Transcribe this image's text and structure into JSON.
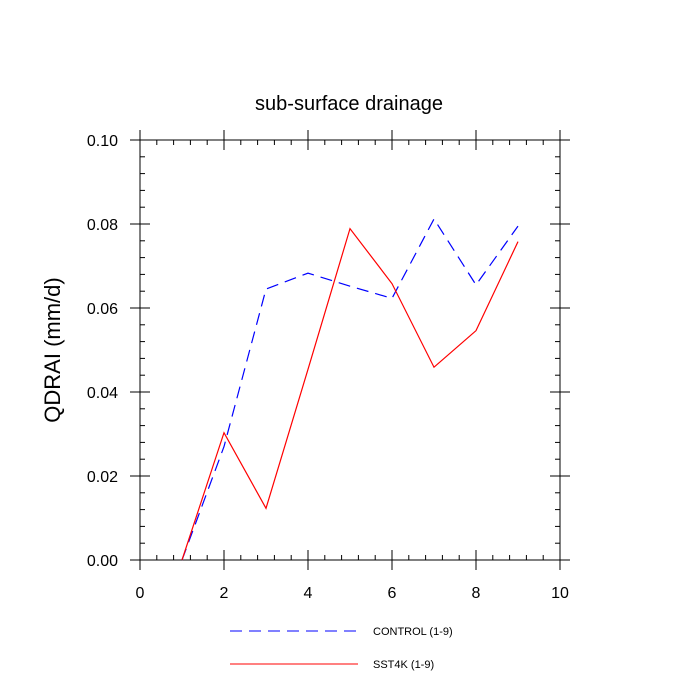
{
  "chart_data": {
    "type": "line",
    "title": "sub-surface drainage",
    "xlabel": "",
    "ylabel": "QDRAI  (mm/d)",
    "xlim": [
      0,
      10
    ],
    "ylim": [
      0,
      0.1
    ],
    "xticks": [
      0,
      2,
      4,
      6,
      8,
      10
    ],
    "xtick_labels": [
      "0",
      "2",
      "4",
      "6",
      "8",
      "10"
    ],
    "yticks": [
      0,
      0.02,
      0.04,
      0.06,
      0.08,
      0.1
    ],
    "ytick_labels": [
      "0.00",
      "0.02",
      "0.04",
      "0.06",
      "0.08",
      "0.10"
    ],
    "grid": false,
    "legend_position": "bottom",
    "x": [
      1,
      2,
      3,
      4,
      5,
      6,
      7,
      8,
      9
    ],
    "series": [
      {
        "name": "CONTROL (1-9)",
        "color": "#0000ff",
        "dash": "dashed",
        "values": [
          0.0,
          0.027,
          0.0645,
          0.0683,
          0.0652,
          0.0623,
          0.0812,
          0.0655,
          0.0795
        ]
      },
      {
        "name": "SST4K (1-9)",
        "color": "#ff0000",
        "dash": "solid",
        "values": [
          0.0,
          0.0303,
          0.0123,
          0.0454,
          0.0789,
          0.0658,
          0.0459,
          0.0546,
          0.0758
        ]
      }
    ]
  }
}
